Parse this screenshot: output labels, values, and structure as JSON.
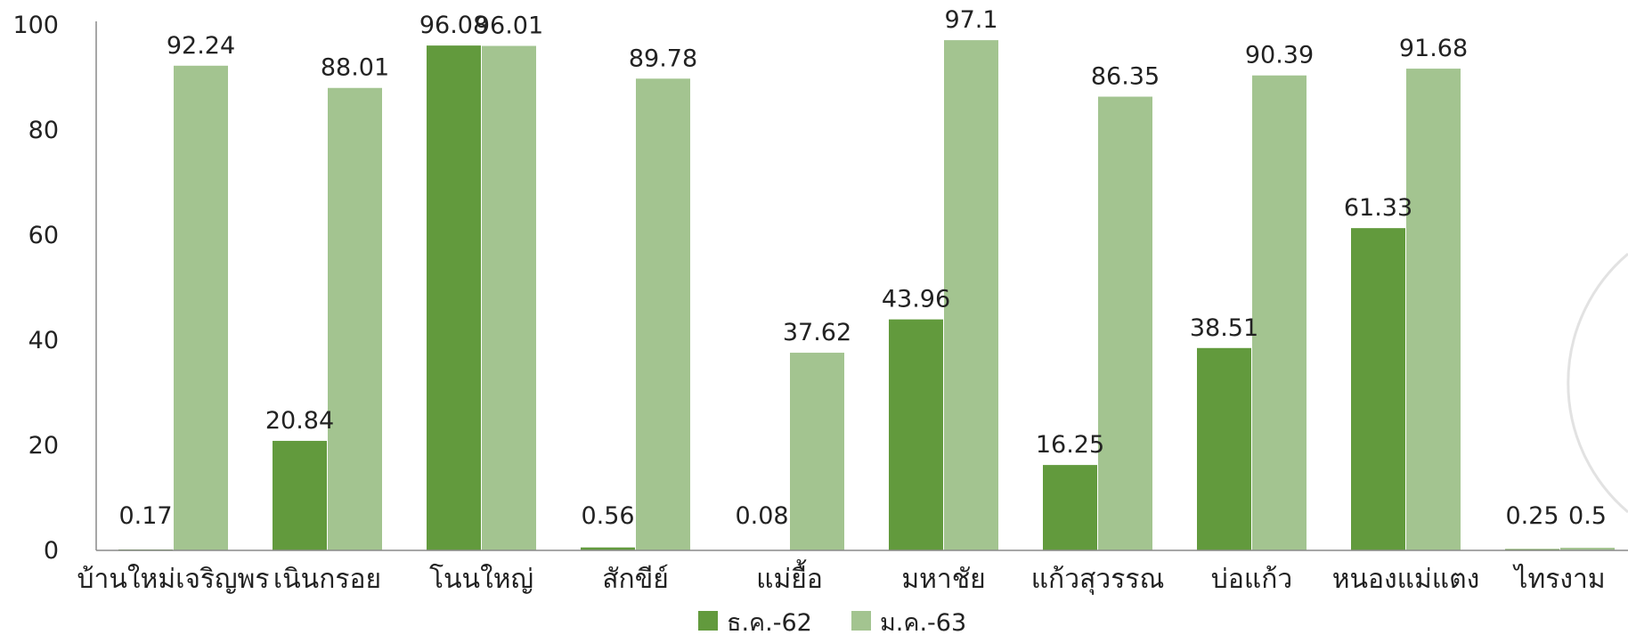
{
  "chart_data": {
    "type": "bar",
    "categories": [
      "บ้านใหม่เจริญพร",
      "เนินกรอย",
      "โนนใหญ่",
      "สักขีย์",
      "แม่ยื้อ",
      "มหาชัย",
      "แก้วสุวรรณ",
      "บ่อแก้ว",
      "หนองแม่แตง",
      "ไทรงาม"
    ],
    "series": [
      {
        "name": "ธ.ค.-62",
        "color": "#629a3d",
        "values": [
          0.17,
          20.84,
          96.08,
          0.56,
          0.08,
          43.96,
          16.25,
          38.51,
          61.33,
          0.25
        ],
        "labels": [
          "0.17",
          "20.84",
          "96.08",
          "0.56",
          "0.08",
          "43.96",
          "16.25",
          "38.51",
          "61.33",
          "0.25"
        ]
      },
      {
        "name": "ม.ค.-63",
        "color": "#a3c490",
        "values": [
          92.24,
          88.01,
          96.01,
          89.78,
          37.62,
          97.1,
          86.35,
          90.39,
          91.68,
          0.5
        ],
        "labels": [
          "92.24",
          "88.01",
          "96.01",
          "89.78",
          "37.62",
          "97.1",
          "86.35",
          "90.39",
          "91.68",
          "0.5"
        ]
      }
    ],
    "ylim": [
      0,
      100
    ],
    "yticks": [
      "0",
      "20",
      "40",
      "60",
      "80",
      "100"
    ],
    "title": "",
    "xlabel": "",
    "ylabel": "",
    "grid": false,
    "legend_position": "bottom"
  }
}
